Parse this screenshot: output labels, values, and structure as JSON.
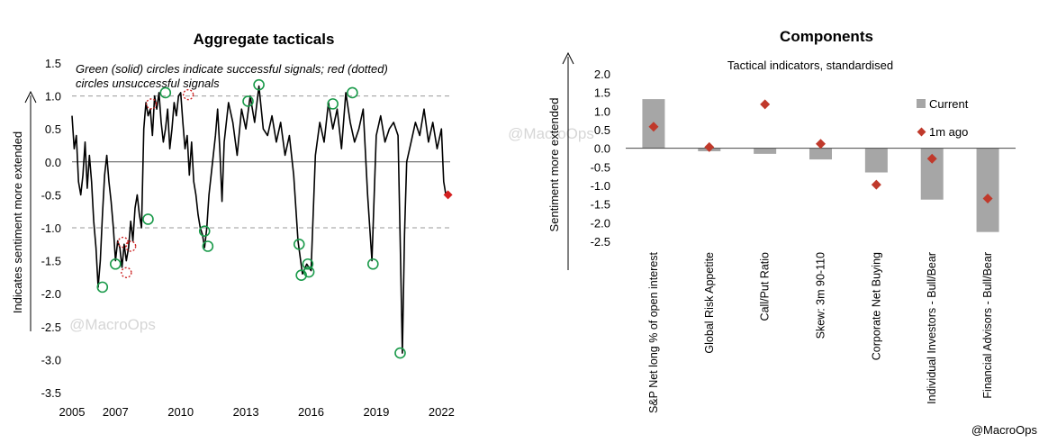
{
  "chart_data": [
    {
      "type": "line",
      "title": "Aggregate tacticals",
      "ylabel": "Indicates sentiment more extended",
      "annotation": [
        "Green (solid) circles indicate successful signals; red (dotted)",
        "circles unsuccessful signals"
      ],
      "watermark": "@MacroOps",
      "ylim": [
        -3.5,
        1.5
      ],
      "xlim": [
        2005,
        2022.4
      ],
      "y_ticks": [
        "1.5",
        "1.0",
        "0.5",
        "0.0",
        "-0.5",
        "-1.0",
        "-1.5",
        "-2.0",
        "-2.5",
        "-3.0",
        "-3.5"
      ],
      "x_ticks": [
        "2005",
        "2007",
        "2010",
        "2013",
        "2016",
        "2019",
        "2022"
      ],
      "reference_lines": [
        1.0,
        -1.0
      ],
      "colors": {
        "line": "#000000",
        "success": "#1a9a4a",
        "fail": "#cc2222",
        "current": "#d42020",
        "refline": "#999999"
      },
      "series": [
        {
          "x": [
            2005.0,
            2005.1,
            2005.2,
            2005.3,
            2005.4,
            2005.5,
            2005.6,
            2005.7,
            2005.8,
            2005.9,
            2006.0,
            2006.1,
            2006.2,
            2006.3,
            2006.4,
            2006.5,
            2006.6,
            2006.7,
            2006.8,
            2006.9,
            2007.0,
            2007.1,
            2007.2,
            2007.3,
            2007.4,
            2007.5,
            2007.6,
            2007.7,
            2007.8,
            2007.9,
            2008.0,
            2008.1,
            2008.2,
            2008.3,
            2008.4,
            2008.5,
            2008.6,
            2008.7,
            2008.8,
            2008.9,
            2009.0,
            2009.1,
            2009.2,
            2009.3,
            2009.4,
            2009.5,
            2009.6,
            2009.7,
            2009.8,
            2009.9,
            2010.0,
            2010.1,
            2010.2,
            2010.3,
            2010.4,
            2010.5,
            2010.6,
            2010.7,
            2010.8,
            2010.9,
            2011.0,
            2011.1,
            2011.2,
            2011.3,
            2011.4,
            2011.5,
            2011.6,
            2011.7,
            2011.8,
            2011.9,
            2012.0,
            2012.2,
            2012.4,
            2012.6,
            2012.8,
            2013.0,
            2013.2,
            2013.4,
            2013.6,
            2013.8,
            2014.0,
            2014.2,
            2014.4,
            2014.6,
            2014.8,
            2015.0,
            2015.2,
            2015.4,
            2015.6,
            2015.8,
            2016.0,
            2016.2,
            2016.4,
            2016.6,
            2016.8,
            2017.0,
            2017.2,
            2017.4,
            2017.6,
            2017.8,
            2018.0,
            2018.2,
            2018.4,
            2018.6,
            2018.8,
            2019.0,
            2019.2,
            2019.4,
            2019.6,
            2019.8,
            2020.0,
            2020.1,
            2020.2,
            2020.3,
            2020.4,
            2020.6,
            2020.8,
            2021.0,
            2021.2,
            2021.4,
            2021.6,
            2021.8,
            2022.0,
            2022.1,
            2022.2
          ],
          "values": [
            0.7,
            0.2,
            0.4,
            -0.3,
            -0.5,
            -0.2,
            0.3,
            -0.4,
            0.1,
            -0.3,
            -0.9,
            -1.3,
            -1.9,
            -1.5,
            -0.8,
            -0.2,
            0.1,
            -0.3,
            -0.6,
            -1.0,
            -1.5,
            -1.2,
            -1.3,
            -1.6,
            -1.25,
            -1.5,
            -1.3,
            -0.9,
            -1.2,
            -0.7,
            -0.5,
            -0.8,
            -1.0,
            0.5,
            0.9,
            0.7,
            0.8,
            0.4,
            1.0,
            0.8,
            1.05,
            0.6,
            0.3,
            0.5,
            0.8,
            0.2,
            0.5,
            0.9,
            0.7,
            1.0,
            1.05,
            0.6,
            0.2,
            0.4,
            -0.2,
            0.3,
            -0.3,
            -0.5,
            -0.8,
            -1.0,
            -1.1,
            -1.3,
            -1.0,
            -0.5,
            -0.2,
            0.1,
            0.4,
            0.8,
            0.2,
            -0.6,
            0.3,
            0.9,
            0.6,
            0.1,
            0.8,
            0.5,
            1.0,
            0.6,
            1.15,
            0.5,
            0.4,
            0.7,
            0.3,
            0.6,
            0.1,
            0.4,
            -0.2,
            -1.2,
            -1.7,
            -1.55,
            -1.65,
            0.1,
            0.6,
            0.3,
            0.9,
            0.5,
            0.8,
            0.2,
            1.05,
            0.6,
            0.3,
            0.5,
            0.8,
            -0.5,
            -1.5,
            0.4,
            0.7,
            0.3,
            0.5,
            0.6,
            0.4,
            -1.2,
            -2.9,
            -1.1,
            0.0,
            0.3,
            0.6,
            0.4,
            0.8,
            0.3,
            0.6,
            0.2,
            0.5,
            -0.3,
            -0.5
          ]
        }
      ],
      "signals": {
        "success": [
          [
            2006.4,
            -1.9
          ],
          [
            2007.0,
            -1.55
          ],
          [
            2008.5,
            -0.87
          ],
          [
            2009.3,
            1.05
          ],
          [
            2011.1,
            -1.05
          ],
          [
            2011.25,
            -1.28
          ],
          [
            2013.1,
            0.92
          ],
          [
            2013.6,
            1.17
          ],
          [
            2015.45,
            -1.25
          ],
          [
            2015.55,
            -1.72
          ],
          [
            2015.85,
            -1.55
          ],
          [
            2015.9,
            -1.67
          ],
          [
            2017.0,
            0.88
          ],
          [
            2017.9,
            1.05
          ],
          [
            2018.85,
            -1.55
          ],
          [
            2020.1,
            -2.9
          ]
        ],
        "fail": [
          [
            2007.35,
            -1.22
          ],
          [
            2007.5,
            -1.68
          ],
          [
            2007.7,
            -1.28
          ],
          [
            2008.65,
            0.88
          ],
          [
            2010.35,
            1.02
          ]
        ],
        "current": [
          2022.3,
          -0.5
        ]
      }
    },
    {
      "type": "bar",
      "title": "Components",
      "subtitle": "Tactical indicators, standardised",
      "ylabel": "Sentiment more extended",
      "ylim": [
        -2.5,
        2.0
      ],
      "y_ticks": [
        "2.0",
        "1.5",
        "1.0",
        "0.5",
        "0.0",
        "-0.5",
        "-1.0",
        "-1.5",
        "-2.0",
        "-2.5"
      ],
      "categories": [
        "S&P Net long % of open interest",
        "Global Risk Appetite",
        "Call/Put Ratio",
        "Skew: 3m 90-110",
        "Corporate Net Buying",
        "Individual Investors - Bull/Bear",
        "Financial Advisors - Bull/Bear"
      ],
      "series": [
        {
          "name": "Current",
          "values": [
            1.32,
            -0.08,
            -0.15,
            -0.3,
            -0.65,
            -1.38,
            -2.25
          ],
          "color": "#a6a6a6"
        },
        {
          "name": "1m ago",
          "values": [
            0.58,
            0.03,
            1.18,
            0.12,
            -0.98,
            -0.28,
            -1.35
          ],
          "color": "#c0392b"
        }
      ],
      "legend": "top-right",
      "watermark": "@MacroOps"
    }
  ],
  "credit": "@MacroOps"
}
